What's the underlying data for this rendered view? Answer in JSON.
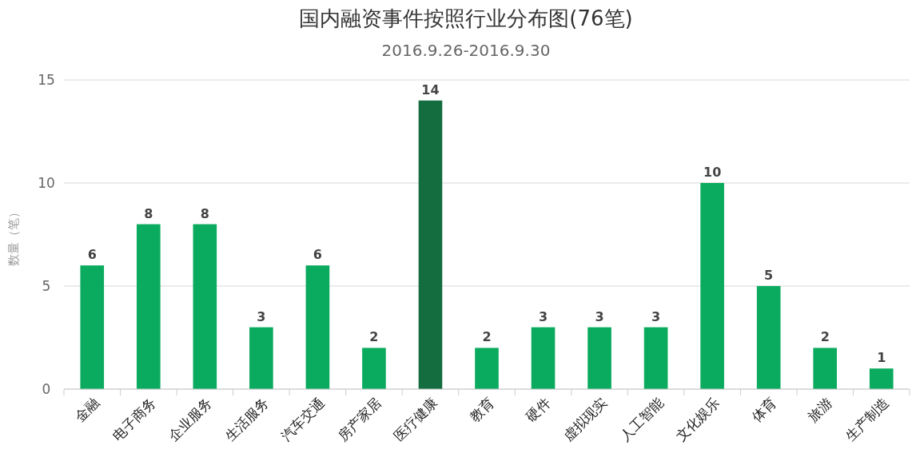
{
  "chart_data": {
    "type": "bar",
    "title": "国内融资事件按照行业分布图(76笔)",
    "subtitle": "2016.9.26-2016.9.30",
    "ylabel": "数量（笔）",
    "categories": [
      "金融",
      "电子商务",
      "企业服务",
      "生活服务",
      "汽车交通",
      "房产家居",
      "医疗健康",
      "教育",
      "硬件",
      "虚拟现实",
      "人工智能",
      "文化娱乐",
      "体育",
      "旅游",
      "生产制造"
    ],
    "values": [
      6,
      8,
      8,
      3,
      6,
      2,
      14,
      2,
      3,
      3,
      3,
      10,
      5,
      2,
      1
    ],
    "colors": [
      "#0aab5e",
      "#0aab5e",
      "#0aab5e",
      "#0aab5e",
      "#0aab5e",
      "#0aab5e",
      "#136d3f",
      "#0aab5e",
      "#0aab5e",
      "#0aab5e",
      "#0aab5e",
      "#0aab5e",
      "#0aab5e",
      "#0aab5e",
      "#0aab5e"
    ],
    "ylim": [
      0,
      15
    ],
    "yticks": [
      0,
      5,
      10,
      15
    ],
    "grid": "y",
    "data_labels": true
  }
}
